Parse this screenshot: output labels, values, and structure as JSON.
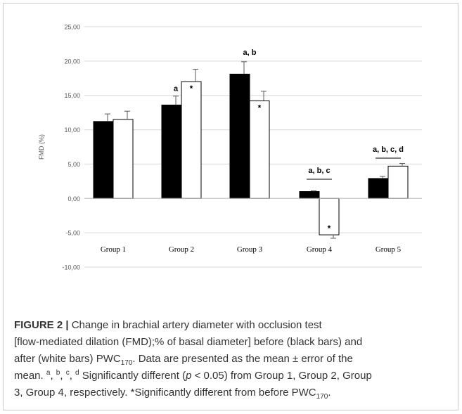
{
  "chart_data": {
    "type": "bar",
    "title": "",
    "ylabel": "FMD (%)",
    "xlabel": "",
    "ylim": [
      -10,
      25
    ],
    "yticks": [
      "25,00",
      "20,00",
      "15,00",
      "10,00",
      "5,00",
      "0,00",
      "-5,00",
      "-10,00"
    ],
    "grid": true,
    "categories": [
      "Group 1",
      "Group 2",
      "Group 3",
      "Group 4",
      "Group 5"
    ],
    "series": [
      {
        "color": "#000000",
        "values": [
          11.2,
          13.6,
          18.1,
          1.0,
          2.9
        ],
        "errors": [
          1.1,
          1.3,
          1.8,
          0.1,
          0.3
        ]
      },
      {
        "color": "#ffffff",
        "values": [
          11.5,
          17.0,
          14.2,
          -5.3,
          4.7
        ],
        "errors": [
          1.2,
          1.8,
          1.4,
          0.5,
          0.4
        ]
      }
    ],
    "significance_letters": [
      "",
      "a",
      "a, b",
      "a, b, c",
      "a, b, c, d"
    ],
    "bar_annotations": [
      [
        "",
        ""
      ],
      [
        "a",
        "*"
      ],
      [
        "",
        "*"
      ],
      [
        "",
        "*"
      ],
      [
        "",
        ""
      ]
    ]
  },
  "caption": {
    "label": "FIGURE 2 |",
    "line1": "Change in brachial artery diameter with occlusion test",
    "line2": "[flow-mediated dilation (FMD);% of basal diameter] before (black bars) and",
    "line3_a": "after (white bars) PWC",
    "line3_sub": "170",
    "line3_b": ". Data are presented as the mean ± error of the",
    "line4": "mean.",
    "sup_a": "a",
    "sup_b": "b",
    "sup_c": "c",
    "sup_d": "d",
    "line4_b": "Significantly different (",
    "p_symbol": "p",
    "line4_c": "< 0.05) from Group 1, Group 2, Group",
    "line5_a": "3, Group 4, respectively. *Significantly different from before PWC",
    "line5_sub": "170",
    "line5_b": "."
  }
}
